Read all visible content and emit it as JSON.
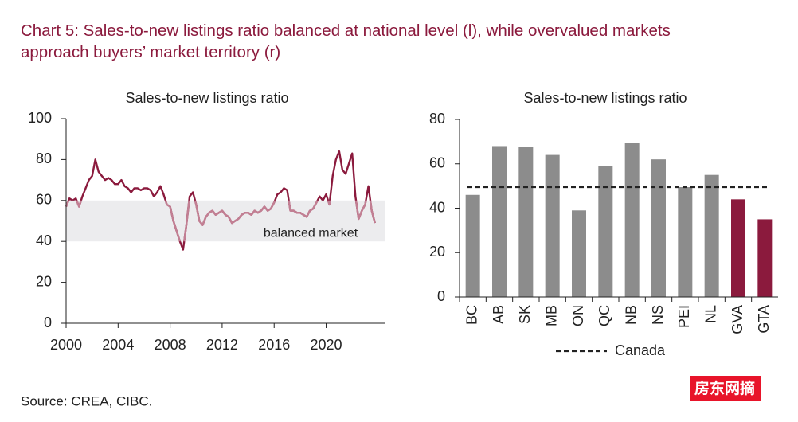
{
  "title": [
    "Chart 5: Sales-to-new listings ratio balanced at national level (l), while overvalued markets",
    "approach buyers’ market territory (r)"
  ],
  "source": "Source: CREA, CIBC.",
  "watermark": "房东网摘",
  "chart_data": [
    {
      "type": "line",
      "title": "Sales-to-new listings ratio",
      "color": "#8b1a3d",
      "band": {
        "range": [
          40,
          60
        ],
        "label": "balanced market",
        "color": "#ececee",
        "line_color": "#c27f93"
      },
      "xlim": [
        2000,
        2024.5
      ],
      "xticks": [
        2000,
        2004,
        2008,
        2012,
        2016,
        2020
      ],
      "ylim": [
        0,
        100
      ],
      "yticks": [
        0,
        20,
        40,
        60,
        80,
        100
      ],
      "x": [
        2000,
        2000.25,
        2000.5,
        2000.75,
        2001,
        2001.25,
        2001.5,
        2001.75,
        2002,
        2002.25,
        2002.5,
        2002.75,
        2003,
        2003.25,
        2003.5,
        2003.75,
        2004,
        2004.25,
        2004.5,
        2004.75,
        2005,
        2005.25,
        2005.5,
        2005.75,
        2006,
        2006.25,
        2006.5,
        2006.75,
        2007,
        2007.25,
        2007.5,
        2007.75,
        2008,
        2008.25,
        2008.5,
        2008.75,
        2009,
        2009.25,
        2009.5,
        2009.75,
        2010,
        2010.25,
        2010.5,
        2010.75,
        2011,
        2011.25,
        2011.5,
        2011.75,
        2012,
        2012.25,
        2012.5,
        2012.75,
        2013,
        2013.25,
        2013.5,
        2013.75,
        2014,
        2014.25,
        2014.5,
        2014.75,
        2015,
        2015.25,
        2015.5,
        2015.75,
        2016,
        2016.25,
        2016.5,
        2016.75,
        2017,
        2017.25,
        2017.5,
        2017.75,
        2018,
        2018.25,
        2018.5,
        2018.75,
        2019,
        2019.25,
        2019.5,
        2019.75,
        2020,
        2020.25,
        2020.5,
        2020.75,
        2021,
        2021.25,
        2021.5,
        2021.75,
        2022,
        2022.25,
        2022.5,
        2022.75,
        2023,
        2023.25,
        2023.5,
        2023.75
      ],
      "values": [
        57,
        61,
        60,
        61,
        57,
        62,
        66,
        70,
        72,
        80,
        74,
        72,
        70,
        71,
        70,
        68,
        68,
        70,
        67,
        66,
        64,
        66,
        66,
        65,
        66,
        66,
        65,
        62,
        64,
        67,
        63,
        58,
        57,
        50,
        45,
        40,
        36,
        48,
        62,
        64,
        58,
        50,
        48,
        52,
        54,
        55,
        53,
        54,
        55,
        53,
        52,
        49,
        50,
        51,
        53,
        54,
        54,
        53,
        55,
        54,
        55,
        57,
        55,
        56,
        59,
        63,
        64,
        66,
        65,
        55,
        55,
        54,
        54,
        53,
        52,
        55,
        56,
        59,
        62,
        60,
        63,
        58,
        72,
        80,
        84,
        75,
        73,
        78,
        83,
        62,
        51,
        55,
        58,
        67,
        55,
        49
      ]
    },
    {
      "type": "bar",
      "title": "Sales-to-new listings ratio",
      "categories": [
        "BC",
        "AB",
        "SK",
        "MB",
        "ON",
        "QC",
        "NB",
        "NS",
        "PEI",
        "NL",
        "GVA",
        "GTA"
      ],
      "values": [
        46,
        68,
        67.5,
        64,
        39,
        59,
        69.5,
        62,
        49.5,
        55,
        44,
        35
      ],
      "colors": [
        "#8c8c8c",
        "#8c8c8c",
        "#8c8c8c",
        "#8c8c8c",
        "#8c8c8c",
        "#8c8c8c",
        "#8c8c8c",
        "#8c8c8c",
        "#8c8c8c",
        "#8c8c8c",
        "#8b1a3d",
        "#8b1a3d"
      ],
      "ylim": [
        0,
        80
      ],
      "yticks": [
        0,
        20,
        40,
        60,
        80
      ],
      "reference_line": {
        "value": 49.5,
        "label": "Canada",
        "color": "#222222"
      }
    }
  ]
}
